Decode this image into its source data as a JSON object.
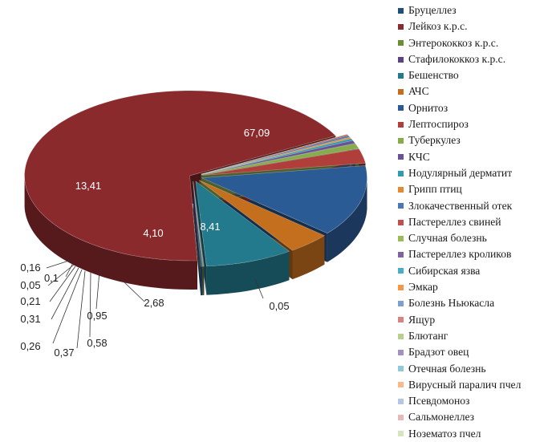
{
  "chart_data": {
    "type": "pie",
    "style": "3d-exploded",
    "legend_position": "right",
    "slices": [
      {
        "label": "Бруцеллез",
        "value": 0.16,
        "value_label": "0,16",
        "color": "#1f4e79"
      },
      {
        "label": "Лейкоз к.р.с.",
        "value": 67.09,
        "value_label": "67,09",
        "color": "#8b2a2d"
      },
      {
        "label": "Энтерококкоз к.р.с.",
        "value": 0.1,
        "value_label": "0,1",
        "color": "#6a8e34"
      },
      {
        "label": "Стафилококкоз к.р.с.",
        "value": 0.05,
        "value_label": "0,05",
        "color": "#5a4380"
      },
      {
        "label": "Бешенство",
        "value": 8.41,
        "value_label": "8,41",
        "color": "#237a8c"
      },
      {
        "label": "АЧС",
        "value": 4.1,
        "value_label": "4,10",
        "color": "#c46f1d"
      },
      {
        "label": "Орнитоз",
        "value": 13.41,
        "value_label": "13,41",
        "color": "#2b5b94"
      },
      {
        "label": "Лептоспироз",
        "value": 2.68,
        "value_label": "2,68",
        "color": "#b03e3a"
      },
      {
        "label": "Туберкулез",
        "value": 0.95,
        "value_label": "0,95",
        "color": "#86ad4a"
      },
      {
        "label": "КЧС",
        "value": 0.58,
        "value_label": "0,58",
        "color": "#6a5296"
      },
      {
        "label": "Нодулярный дерматит",
        "value": 0.37,
        "value_label": "0,37",
        "color": "#2e9bb0"
      },
      {
        "label": "Грипп птиц",
        "value": 0.26,
        "value_label": "0,26",
        "color": "#e58a33"
      },
      {
        "label": "Злокачественный отек",
        "value": 0.31,
        "value_label": "0,31",
        "color": "#4a78b5"
      },
      {
        "label": "Пастереллез свиней",
        "value": 0.21,
        "value_label": "0,21",
        "color": "#c0504d"
      },
      {
        "label": "Случная болезнь",
        "value": 0.05,
        "value_label": "0,05",
        "color": "#9bbb59"
      },
      {
        "label": "Пастереллез кроликов",
        "value": null,
        "value_label": null,
        "color": "#8064a2"
      },
      {
        "label": "Сибирская язва",
        "value": null,
        "value_label": null,
        "color": "#4bacc6"
      },
      {
        "label": "Эмкар",
        "value": null,
        "value_label": null,
        "color": "#f79646"
      },
      {
        "label": "Болезнь Ньюкасла",
        "value": null,
        "value_label": null,
        "color": "#7f9fcf"
      },
      {
        "label": "Ящур",
        "value": null,
        "value_label": null,
        "color": "#d9837f"
      },
      {
        "label": "Блютанг",
        "value": null,
        "value_label": null,
        "color": "#b8d08c"
      },
      {
        "label": "Брадзот овец",
        "value": null,
        "value_label": null,
        "color": "#a192bf"
      },
      {
        "label": "Отечная болезнь",
        "value": null,
        "value_label": null,
        "color": "#8fcadb"
      },
      {
        "label": "Вирусный паралич пчел",
        "value": null,
        "value_label": null,
        "color": "#f9b98a"
      },
      {
        "label": "Псевдомоноз",
        "value": null,
        "value_label": null,
        "color": "#b3c6e3"
      },
      {
        "label": "Сальмонеллез",
        "value": null,
        "value_label": null,
        "color": "#e6b8b6"
      },
      {
        "label": "Нозематоз пчел",
        "value": null,
        "value_label": null,
        "color": "#d5e6bd"
      }
    ],
    "extra_labels": [
      "0,05"
    ]
  }
}
